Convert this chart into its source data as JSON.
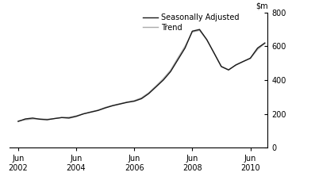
{
  "ylim": [
    0,
    800
  ],
  "yticks": [
    0,
    200,
    400,
    600,
    800
  ],
  "legend_entries": [
    "Seasonally Adjusted",
    "Trend"
  ],
  "sa_color": "#1a1a1a",
  "trend_color": "#aaaaaa",
  "background_color": "#ffffff",
  "seasonally_adjusted": [
    [
      2002.5,
      155
    ],
    [
      2002.75,
      170
    ],
    [
      2003.0,
      175
    ],
    [
      2003.25,
      168
    ],
    [
      2003.5,
      165
    ],
    [
      2003.75,
      172
    ],
    [
      2004.0,
      178
    ],
    [
      2004.25,
      175
    ],
    [
      2004.5,
      185
    ],
    [
      2004.75,
      200
    ],
    [
      2005.0,
      210
    ],
    [
      2005.25,
      220
    ],
    [
      2005.5,
      235
    ],
    [
      2005.75,
      248
    ],
    [
      2006.0,
      258
    ],
    [
      2006.25,
      268
    ],
    [
      2006.5,
      275
    ],
    [
      2006.75,
      290
    ],
    [
      2007.0,
      320
    ],
    [
      2007.25,
      360
    ],
    [
      2007.5,
      400
    ],
    [
      2007.75,
      450
    ],
    [
      2008.0,
      520
    ],
    [
      2008.25,
      590
    ],
    [
      2008.5,
      690
    ],
    [
      2008.75,
      700
    ],
    [
      2009.0,
      640
    ],
    [
      2009.25,
      560
    ],
    [
      2009.5,
      480
    ],
    [
      2009.75,
      460
    ],
    [
      2010.0,
      490
    ],
    [
      2010.25,
      510
    ],
    [
      2010.5,
      530
    ],
    [
      2010.75,
      590
    ],
    [
      2011.0,
      620
    ]
  ],
  "trend": [
    [
      2002.5,
      158
    ],
    [
      2002.75,
      165
    ],
    [
      2003.0,
      170
    ],
    [
      2003.25,
      170
    ],
    [
      2003.5,
      168
    ],
    [
      2003.75,
      172
    ],
    [
      2004.0,
      178
    ],
    [
      2004.25,
      180
    ],
    [
      2004.5,
      188
    ],
    [
      2004.75,
      200
    ],
    [
      2005.0,
      212
    ],
    [
      2005.25,
      222
    ],
    [
      2005.5,
      238
    ],
    [
      2005.75,
      250
    ],
    [
      2006.0,
      260
    ],
    [
      2006.25,
      270
    ],
    [
      2006.5,
      278
    ],
    [
      2006.75,
      295
    ],
    [
      2007.0,
      325
    ],
    [
      2007.25,
      365
    ],
    [
      2007.5,
      408
    ],
    [
      2007.75,
      458
    ],
    [
      2008.0,
      530
    ],
    [
      2008.25,
      600
    ],
    [
      2008.5,
      685
    ],
    [
      2008.75,
      695
    ],
    [
      2009.0,
      638
    ],
    [
      2009.25,
      562
    ],
    [
      2009.5,
      482
    ],
    [
      2009.75,
      462
    ],
    [
      2010.0,
      488
    ],
    [
      2010.25,
      510
    ],
    [
      2010.5,
      528
    ],
    [
      2010.75,
      582
    ],
    [
      2011.0,
      618
    ]
  ],
  "xtick_positions": [
    2002.5,
    2004.5,
    2006.5,
    2008.5,
    2010.5
  ],
  "xtick_labels": [
    "Jun\n2002",
    "Jun\n2004",
    "Jun\n2006",
    "Jun\n2008",
    "Jun\n2010"
  ],
  "xlim": [
    2002.2,
    2011.1
  ]
}
